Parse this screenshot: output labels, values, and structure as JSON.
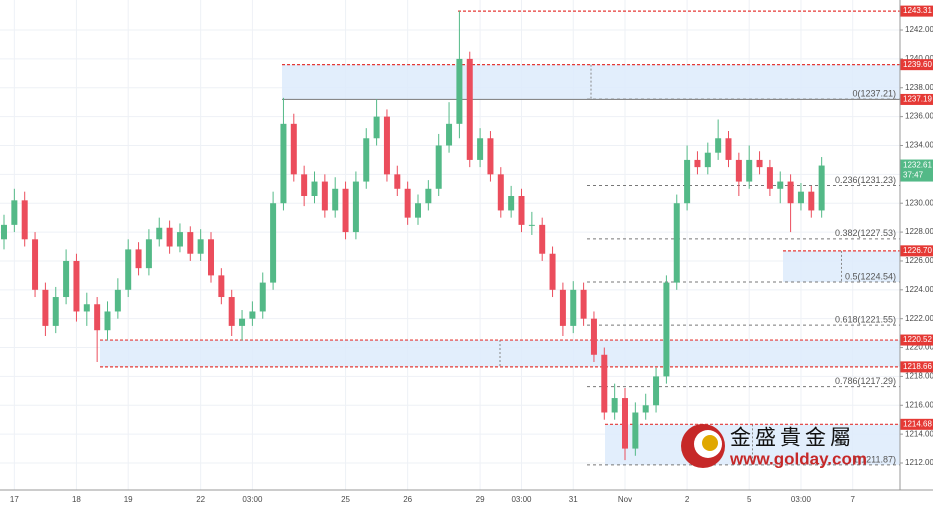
{
  "chart_data": {
    "type": "candlestick",
    "categories": [
      null,
      "17",
      null,
      null,
      null,
      null,
      null,
      "18",
      null,
      null,
      null,
      null,
      "19",
      null,
      null,
      null,
      null,
      null,
      null,
      "22",
      null,
      null,
      null,
      null,
      "03:00",
      null,
      null,
      null,
      null,
      null,
      null,
      null,
      null,
      "25",
      null,
      null,
      null,
      null,
      null,
      "26",
      null,
      null,
      null,
      null,
      null,
      null,
      "29",
      null,
      null,
      null,
      "03:00",
      null,
      null,
      null,
      null,
      "31",
      null,
      null,
      null,
      null,
      "Nov",
      null,
      null,
      null,
      null,
      null,
      "2",
      null,
      null,
      null,
      null,
      null,
      "5",
      null,
      null,
      null,
      null,
      "03:00",
      null,
      null,
      null,
      null,
      "7"
    ],
    "open": [
      1227.5,
      1228.5,
      1230.2,
      1227.5,
      1224.0,
      1221.5,
      1223.5,
      1226.0,
      1222.5,
      1223.0,
      1221.2,
      1222.5,
      1224.0,
      1226.8,
      1225.5,
      1227.5,
      1228.3,
      1227.0,
      1228.0,
      1226.5,
      1227.5,
      1225.0,
      1223.5,
      1221.5,
      1222.0,
      1222.5,
      1224.5,
      1230.0,
      1235.5,
      1232.0,
      1230.5,
      1231.5,
      1229.5,
      1231.0,
      1228.0,
      1231.5,
      1234.5,
      1236.0,
      1232.0,
      1231.0,
      1229.0,
      1230.0,
      1231.0,
      1234.0,
      1235.5,
      1240.0,
      1233.0,
      1234.5,
      1232.0,
      1229.5,
      1230.5,
      1228.5,
      1228.5,
      1226.5,
      1224.0,
      1221.5,
      1224.0,
      1222.0,
      1219.5,
      1215.5,
      1216.5,
      1213.0,
      1215.5,
      1216.0,
      1218.0,
      1224.5,
      1230.0,
      1233.0,
      1232.5,
      1233.5,
      1234.5,
      1233.0,
      1231.5,
      1233.0,
      1232.5,
      1231.0,
      1231.5,
      1230.0,
      1230.8,
      1229.5,
      null,
      null,
      null
    ],
    "high": [
      1229.2,
      1231.0,
      1230.8,
      1228.0,
      1224.5,
      1224.2,
      1226.8,
      1226.5,
      1223.8,
      1223.5,
      1223.2,
      1224.8,
      1227.5,
      1227.3,
      1228.2,
      1229.0,
      1228.8,
      1228.6,
      1228.4,
      1228.2,
      1228.0,
      1225.5,
      1224.0,
      1222.6,
      1223.2,
      1225.2,
      1230.8,
      1237.3,
      1236.2,
      1232.6,
      1232.2,
      1232.0,
      1231.8,
      1231.5,
      1232.2,
      1235.2,
      1237.2,
      1236.5,
      1232.6,
      1231.5,
      1230.6,
      1231.6,
      1234.8,
      1237.0,
      1243.31,
      1240.5,
      1235.2,
      1235.0,
      1232.5,
      1231.2,
      1231.0,
      1229.4,
      1229.0,
      1227.0,
      1224.5,
      1224.6,
      1224.5,
      1222.5,
      1220.0,
      1217.5,
      1217.2,
      1216.2,
      1216.8,
      1218.6,
      1225.0,
      1230.6,
      1234.0,
      1233.6,
      1234.2,
      1235.8,
      1235.0,
      1233.5,
      1234.0,
      1233.6,
      1233.0,
      1232.2,
      1232.0,
      1231.4,
      1231.2,
      1233.2,
      null,
      null,
      null
    ],
    "low": [
      1226.8,
      1228.0,
      1227.0,
      1223.5,
      1220.8,
      1221.0,
      1223.0,
      1221.8,
      1221.5,
      1219.0,
      1220.5,
      1222.0,
      1223.5,
      1225.0,
      1225.0,
      1227.0,
      1226.5,
      1226.6,
      1226.0,
      1226.0,
      1224.5,
      1223.0,
      1220.8,
      1220.5,
      1221.5,
      1222.0,
      1224.0,
      1229.5,
      1231.5,
      1229.8,
      1230.0,
      1229.0,
      1229.0,
      1227.5,
      1227.5,
      1231.0,
      1234.0,
      1231.5,
      1230.5,
      1228.5,
      1228.5,
      1229.5,
      1230.5,
      1233.5,
      1234.5,
      1232.5,
      1232.5,
      1231.5,
      1229.0,
      1229.0,
      1228.0,
      1227.8,
      1226.0,
      1223.5,
      1220.8,
      1221.0,
      1221.5,
      1219.0,
      1215.0,
      1215.0,
      1212.2,
      1212.5,
      1215.0,
      1215.5,
      1217.5,
      1224.0,
      1229.5,
      1232.0,
      1232.0,
      1233.0,
      1232.5,
      1230.5,
      1231.0,
      1232.0,
      1230.5,
      1230.0,
      1228.0,
      1229.5,
      1229.0,
      1229.0,
      null,
      null,
      null
    ],
    "close": [
      1228.5,
      1230.2,
      1227.5,
      1224.0,
      1221.5,
      1223.5,
      1226.0,
      1222.5,
      1223.0,
      1221.2,
      1222.5,
      1224.0,
      1226.8,
      1225.5,
      1227.5,
      1228.3,
      1227.0,
      1228.0,
      1226.5,
      1227.5,
      1225.0,
      1223.5,
      1221.5,
      1222.0,
      1222.5,
      1224.5,
      1230.0,
      1235.5,
      1232.0,
      1230.5,
      1231.5,
      1229.5,
      1231.0,
      1228.0,
      1231.5,
      1234.5,
      1236.0,
      1232.0,
      1231.0,
      1229.0,
      1230.0,
      1231.0,
      1234.0,
      1235.5,
      1240.0,
      1233.0,
      1234.5,
      1232.0,
      1229.5,
      1230.5,
      1228.5,
      1228.5,
      1226.5,
      1224.0,
      1221.5,
      1224.0,
      1222.0,
      1219.5,
      1215.5,
      1216.5,
      1213.0,
      1215.5,
      1216.0,
      1218.0,
      1224.5,
      1230.0,
      1233.0,
      1232.5,
      1233.5,
      1234.5,
      1233.0,
      1231.5,
      1233.0,
      1232.5,
      1231.0,
      1231.5,
      1230.0,
      1230.8,
      1229.5,
      1232.61,
      null,
      null,
      null
    ],
    "up_color": "#53b987",
    "down_color": "#eb4d5c",
    "ylim": [
      1210.13,
      1244.08
    ],
    "yticks": [
      {
        "value": 1212,
        "label": "1212.00"
      },
      {
        "value": 1214,
        "label": "1214.00"
      },
      {
        "value": 1216,
        "label": "1216.00"
      },
      {
        "value": 1218,
        "label": "1218.00"
      },
      {
        "value": 1220,
        "label": "1220.00"
      },
      {
        "value": 1222,
        "label": "1222.00"
      },
      {
        "value": 1224,
        "label": "1224.00"
      },
      {
        "value": 1226,
        "label": "1226.00"
      },
      {
        "value": 1228,
        "label": "1228.00"
      },
      {
        "value": 1230,
        "label": "1230.00"
      },
      {
        "value": 1232,
        "label": "1232.00"
      },
      {
        "value": 1234,
        "label": "1234.00"
      },
      {
        "value": 1236,
        "label": "1236.00"
      },
      {
        "value": 1238,
        "label": "1238.00"
      },
      {
        "value": 1240,
        "label": "1240.00"
      },
      {
        "value": 1242,
        "label": "1242.00"
      }
    ],
    "grid": true,
    "price_levels": [
      1243.31,
      {
        "value": 1239.6,
        "label": "1239.60"
      },
      1237.19,
      {
        "value": 1226.7,
        "label": "1226.70"
      },
      1220.52,
      1218.66,
      1214.68
    ],
    "last_price": 1232.61,
    "countdown": "37:47",
    "fib_levels": [
      {
        "value": 1237.21,
        "label": "0(1237.21)"
      },
      {
        "value": 1231.23,
        "label": "0.236(1231.23)"
      },
      {
        "value": 1227.53,
        "label": "0.382(1227.53)"
      },
      {
        "value": 1224.54,
        "label": "0.5(1224.54)"
      },
      {
        "value": 1221.55,
        "label": "0.618(1221.55)"
      },
      {
        "value": 1217.29,
        "label": "0.786(1217.29)"
      },
      {
        "value": 1211.87,
        "label": "1(1211.87)"
      }
    ],
    "watermark": {
      "title": "金盛貴金屬",
      "url": "www.golday.com"
    }
  }
}
